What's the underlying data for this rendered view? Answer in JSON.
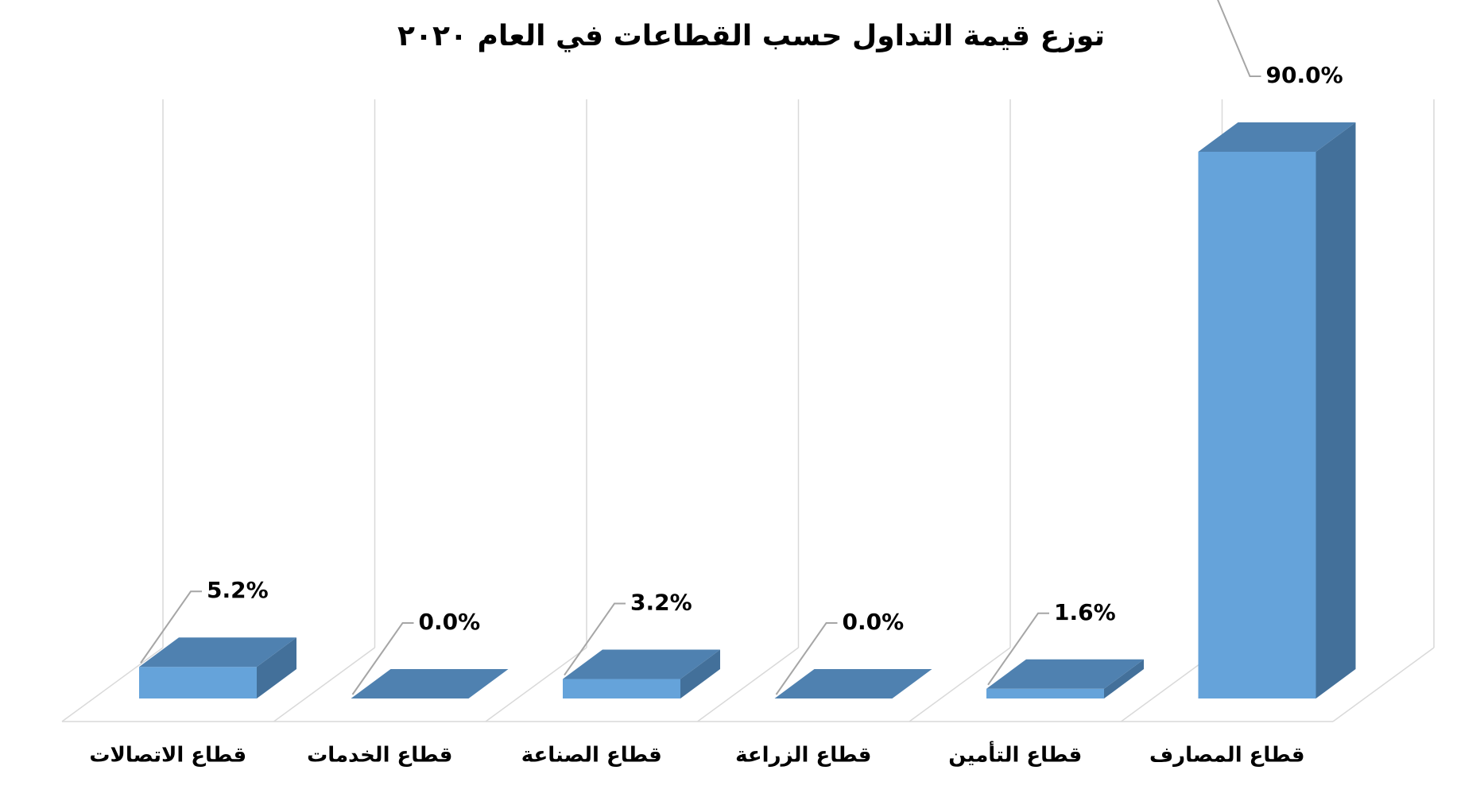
{
  "chart_data": {
    "type": "bar3d",
    "title": "توزع قيمة التداول حسب القطاعات في العام ٢٠٢٠",
    "categories": [
      "قطاع الاتصالات",
      "قطاع الخدمات",
      "قطاع الصناعة",
      "قطاع الزراعة",
      "قطاع التأمين",
      "قطاع المصارف"
    ],
    "values": [
      5.2,
      0.0,
      3.2,
      0.0,
      1.6,
      90.0
    ],
    "value_labels": [
      "5.2%",
      "0.0%",
      "3.2%",
      "0.0%",
      "1.6%",
      "90.0%"
    ],
    "color": "#65a3da",
    "grid": true
  }
}
